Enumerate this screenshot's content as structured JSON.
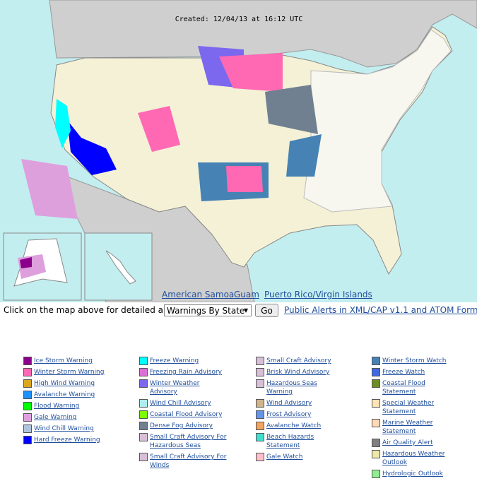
{
  "header": {
    "created": "Created: 12/04/13 at 16:12 UTC"
  },
  "map_links": [
    "American Samoa",
    "Guam",
    "Puerto Rico/Virgin Islands"
  ],
  "form": {
    "prompt": "Click on the map above for detailed alerts or",
    "select": "Warnings By State",
    "button": "Go",
    "feed_link": "Public Alerts in XML/CAP v1.1 and ATOM Formats"
  },
  "legend": [
    [
      {
        "label": "Ice Storm Warning",
        "color": "#8b008b"
      },
      {
        "label": "Winter Storm Warning",
        "color": "#ff69b4"
      },
      {
        "label": "High Wind Warning",
        "color": "#daa520"
      },
      {
        "label": "Avalanche Warning",
        "color": "#1e90ff"
      },
      {
        "label": "Flood Warning",
        "color": "#00ff00"
      },
      {
        "label": "Gale Warning",
        "color": "#dda0dd"
      },
      {
        "label": "Wind Chill Warning",
        "color": "#b0c4de"
      },
      {
        "label": "Hard Freeze Warning",
        "color": "#0000ff"
      }
    ],
    [
      {
        "label": "Freeze Warning",
        "color": "#00ffff"
      },
      {
        "label": "Freezing Rain Advisory",
        "color": "#da70d6"
      },
      {
        "label": "Winter Weather Advisory",
        "color": "#7b68ee"
      },
      {
        "label": "Wind Chill Advisory",
        "color": "#afeeee"
      },
      {
        "label": "Coastal Flood Advisory",
        "color": "#7cfc00"
      },
      {
        "label": "Dense Fog Advisory",
        "color": "#708090"
      },
      {
        "label": "Small Craft Advisory For Hazardous Seas",
        "color": "#d8bfd8"
      },
      {
        "label": "Small Craft Advisory For Winds",
        "color": "#d8bfd8"
      }
    ],
    [
      {
        "label": "Small Craft Advisory",
        "color": "#d8bfd8"
      },
      {
        "label": "Brisk Wind Advisory",
        "color": "#d8bfd8"
      },
      {
        "label": "Hazardous Seas Warning",
        "color": "#d8bfd8"
      },
      {
        "label": "Wind Advisory",
        "color": "#d2b48c"
      },
      {
        "label": "Frost Advisory",
        "color": "#6495ed"
      },
      {
        "label": "Avalanche Watch",
        "color": "#f4a460"
      },
      {
        "label": "Beach Hazards Statement",
        "color": "#40e0d0"
      },
      {
        "label": "Gale Watch",
        "color": "#ffc0cb"
      }
    ],
    [
      {
        "label": "Winter Storm Watch",
        "color": "#4682b4"
      },
      {
        "label": "Freeze Watch",
        "color": "#4169e1"
      },
      {
        "label": "Coastal Flood Statement",
        "color": "#6b8e23"
      },
      {
        "label": "Special Weather Statement",
        "color": "#ffe4b5"
      },
      {
        "label": "Marine Weather Statement",
        "color": "#ffdab9"
      },
      {
        "label": "Air Quality Alert",
        "color": "#808080"
      },
      {
        "label": "Hazardous Weather Outlook",
        "color": "#eee8aa"
      },
      {
        "label": "Hydrologic Outlook",
        "color": "#90ee90"
      }
    ]
  ]
}
